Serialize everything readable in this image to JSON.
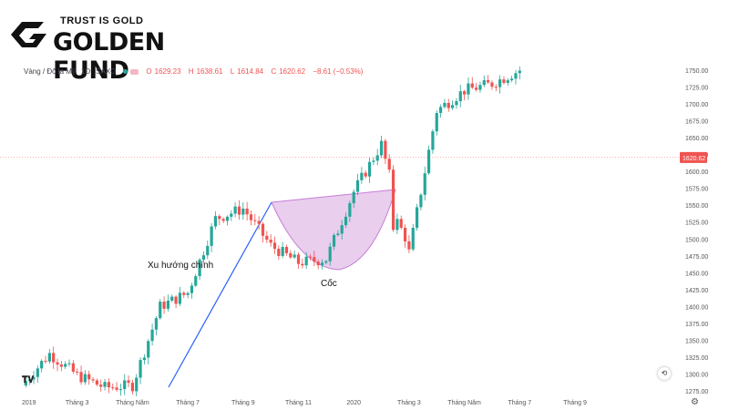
{
  "brand": {
    "tagline": "TRUST IS GOLD",
    "name": "GOLDEN FUND"
  },
  "legend": {
    "symbol": "Vàng / Đô la Mỹ",
    "interval": "1D",
    "exchange": "SAXO",
    "open_label": "O",
    "open": "1629.23",
    "high_label": "H",
    "high": "1638.61",
    "low_label": "L",
    "low": "1614.84",
    "close_label": "C",
    "close": "1620.62",
    "change": "−8.61 (−0.53%)"
  },
  "colors": {
    "up": "#26a69a",
    "down": "#ef5350",
    "trend": "#2962ff",
    "cup_fill": "#e1bee7",
    "cup_edge": "#c77dd6"
  },
  "chart_data": {
    "type": "candlestick",
    "symbol": "Vàng / Đô la Mỹ",
    "period": "2019-01 .. 2020-07 (daily)",
    "ylim": [
      1262.5,
      1762.5
    ],
    "y_ticks": [
      1275,
      1300,
      1325,
      1350,
      1375,
      1400,
      1425,
      1450,
      1475,
      1500,
      1525,
      1550,
      1575,
      1600,
      1625,
      1650,
      1675,
      1700,
      1725,
      1750
    ],
    "x_ticks": [
      "2019",
      "Tháng 3",
      "Tháng Năm",
      "Tháng 7",
      "Tháng 9",
      "Tháng 11",
      "2020",
      "Tháng 3",
      "Tháng Năm",
      "Tháng 7",
      "Tháng 9"
    ],
    "last_price": "1620.62",
    "price_path": [
      [
        "2019-01",
        1283
      ],
      [
        "2019-02",
        1330
      ],
      [
        "2019-03",
        1298
      ],
      [
        "2019-04",
        1280
      ],
      [
        "2019-05",
        1283
      ],
      [
        "2019-06",
        1400
      ],
      [
        "2019-07",
        1420
      ],
      [
        "2019-08",
        1530
      ],
      [
        "2019-09",
        1545
      ],
      [
        "2019-10",
        1490
      ],
      [
        "2019-11",
        1465
      ],
      [
        "2019-12",
        1470
      ],
      [
        "2020-01",
        1570
      ],
      [
        "2020-02",
        1640
      ],
      [
        "2020-03",
        1480
      ],
      [
        "2020-04",
        1690
      ],
      [
        "2020-05",
        1720
      ],
      [
        "2020-06",
        1730
      ],
      [
        "2020-07",
        1750
      ]
    ],
    "annotations": [
      "Xu hướng chính",
      "Cốc"
    ]
  }
}
